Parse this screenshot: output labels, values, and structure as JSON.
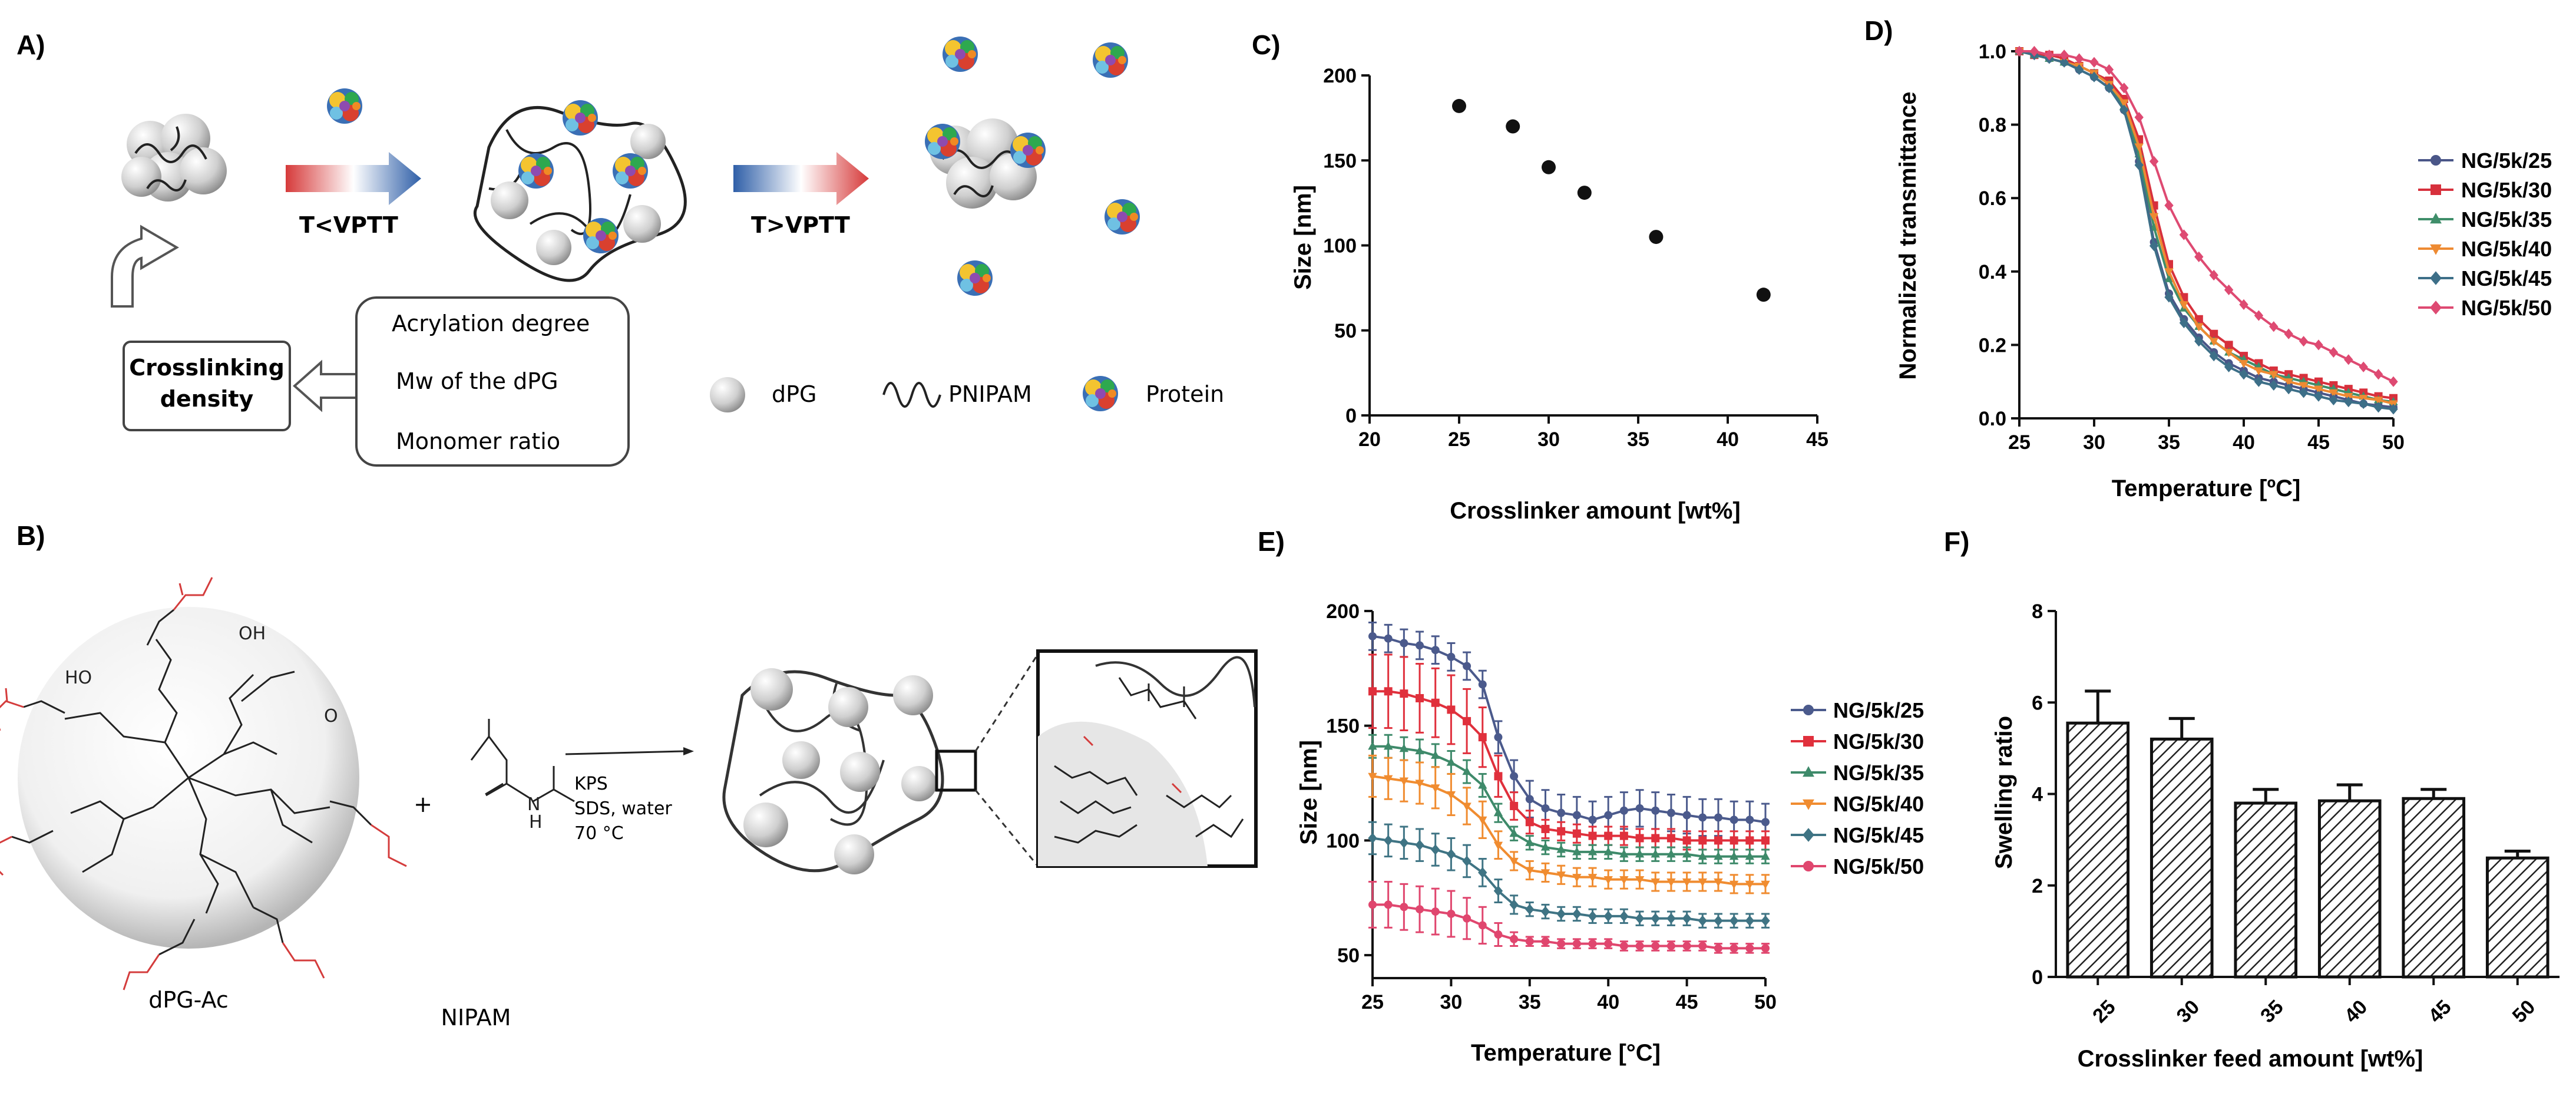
{
  "colors": {
    "s25": "#4b5a8c",
    "s30": "#e0303c",
    "s35": "#3e8a6a",
    "s40": "#f08c30",
    "s45": "#3f7484",
    "s50": "#e0466e",
    "d25": "#4a5688",
    "d30": "#d7303c",
    "d35": "#3f8e6a",
    "d40": "#ee8a32",
    "d45": "#3d6f88",
    "d50": "#de4a72",
    "sphere": "#d9d9d9"
  },
  "schemeA": {
    "panel": "A)",
    "t_lt": "T<VPTT",
    "t_gt": "T>VPTT",
    "crosslinking_line1": "Crosslinking",
    "crosslinking_line2": "density",
    "factors": [
      "Acrylation degree",
      "Mw of the dPG",
      "Monomer ratio"
    ],
    "legend": {
      "dpg": "dPG",
      "pnipam": "PNIPAM",
      "protein": "Protein"
    }
  },
  "schemeB": {
    "panel": "B)",
    "reagent_left": "dPG-Ac",
    "plus": "+",
    "reagent_right": "NIPAM",
    "nh_label": "N",
    "h_label": "H",
    "conditions": [
      "KPS",
      "SDS, water",
      "70 °C"
    ],
    "group_labels": {
      "oh": "OH",
      "ho": "HO",
      "o": "O"
    }
  },
  "chart_data": [
    {
      "panel": "C)",
      "type": "scatter",
      "xlabel": "Crosslinker amount [wt%]",
      "ylabel": "Size  [nm]",
      "xlim": [
        20,
        45
      ],
      "ylim": [
        0,
        200
      ],
      "xticks": [
        "20",
        "25",
        "30",
        "35",
        "40",
        "45"
      ],
      "yticks": [
        "0",
        "50",
        "100",
        "150",
        "200"
      ],
      "x": [
        25,
        28,
        30,
        32,
        36,
        42
      ],
      "y": [
        182,
        170,
        146,
        131,
        105,
        71
      ]
    },
    {
      "panel": "D)",
      "type": "line",
      "xlabel": "Temperature [ºC]",
      "ylabel": "Normalized transmittance",
      "xlim": [
        25,
        50
      ],
      "ylim": [
        0,
        1
      ],
      "xticks": [
        "25",
        "30",
        "35",
        "40",
        "45",
        "50"
      ],
      "yticks": [
        "0.0",
        "0.2",
        "0.4",
        "0.6",
        "0.8",
        "1.0"
      ],
      "x": [
        25,
        26,
        27,
        28,
        29,
        30,
        31,
        32,
        33,
        34,
        35,
        36,
        37,
        38,
        39,
        40,
        41,
        42,
        43,
        44,
        45,
        46,
        47,
        48,
        49,
        50
      ],
      "series": [
        {
          "name": "NG/5k/25",
          "color": "d25",
          "marker": "circle",
          "values": [
            1.0,
            0.99,
            0.98,
            0.97,
            0.95,
            0.93,
            0.9,
            0.84,
            0.7,
            0.48,
            0.34,
            0.27,
            0.22,
            0.18,
            0.15,
            0.13,
            0.11,
            0.1,
            0.09,
            0.08,
            0.07,
            0.06,
            0.05,
            0.04,
            0.035,
            0.03
          ]
        },
        {
          "name": "NG/5k/30",
          "color": "d30",
          "marker": "square",
          "values": [
            1.0,
            0.99,
            0.99,
            0.98,
            0.96,
            0.94,
            0.92,
            0.87,
            0.76,
            0.58,
            0.42,
            0.33,
            0.27,
            0.23,
            0.2,
            0.17,
            0.15,
            0.13,
            0.12,
            0.11,
            0.1,
            0.09,
            0.08,
            0.07,
            0.06,
            0.055
          ]
        },
        {
          "name": "NG/5k/35",
          "color": "d35",
          "marker": "triangle-up",
          "values": [
            1.0,
            0.99,
            0.98,
            0.97,
            0.96,
            0.94,
            0.91,
            0.85,
            0.72,
            0.52,
            0.38,
            0.3,
            0.25,
            0.21,
            0.18,
            0.16,
            0.14,
            0.12,
            0.11,
            0.1,
            0.09,
            0.08,
            0.07,
            0.06,
            0.05,
            0.045
          ]
        },
        {
          "name": "NG/5k/40",
          "color": "d40",
          "marker": "triangle-down",
          "values": [
            1.0,
            0.99,
            0.98,
            0.97,
            0.96,
            0.94,
            0.91,
            0.86,
            0.74,
            0.55,
            0.4,
            0.31,
            0.25,
            0.21,
            0.18,
            0.15,
            0.13,
            0.12,
            0.1,
            0.09,
            0.08,
            0.07,
            0.06,
            0.055,
            0.05,
            0.04
          ]
        },
        {
          "name": "NG/5k/45",
          "color": "d45",
          "marker": "diamond",
          "values": [
            1.0,
            0.99,
            0.98,
            0.97,
            0.95,
            0.93,
            0.9,
            0.84,
            0.69,
            0.47,
            0.33,
            0.26,
            0.21,
            0.17,
            0.14,
            0.12,
            0.1,
            0.09,
            0.08,
            0.07,
            0.06,
            0.05,
            0.045,
            0.04,
            0.03,
            0.025
          ]
        },
        {
          "name": "NG/5k/50",
          "color": "d50",
          "marker": "diamond",
          "values": [
            1.0,
            1.0,
            0.99,
            0.99,
            0.98,
            0.97,
            0.95,
            0.9,
            0.82,
            0.7,
            0.58,
            0.5,
            0.44,
            0.39,
            0.35,
            0.31,
            0.28,
            0.25,
            0.23,
            0.21,
            0.2,
            0.18,
            0.16,
            0.14,
            0.12,
            0.1
          ]
        }
      ]
    },
    {
      "panel": "E)",
      "type": "line",
      "xlabel": "Temperature [°C]",
      "ylabel": "Size  [nm]",
      "xlim": [
        25,
        50
      ],
      "ylim": [
        40,
        200
      ],
      "xticks": [
        "25",
        "30",
        "35",
        "40",
        "45",
        "50"
      ],
      "yticks": [
        "50",
        "100",
        "150",
        "200"
      ],
      "x": [
        25,
        26,
        27,
        28,
        29,
        30,
        31,
        32,
        33,
        34,
        35,
        36,
        37,
        38,
        39,
        40,
        41,
        42,
        43,
        44,
        45,
        46,
        47,
        48,
        49,
        50
      ],
      "series": [
        {
          "name": "NG/5k/25",
          "color": "s25",
          "marker": "circle",
          "values": [
            189,
            188,
            186,
            185,
            183,
            180,
            176,
            168,
            145,
            128,
            118,
            114,
            112,
            111,
            109,
            111,
            113,
            114,
            113,
            112,
            111,
            110,
            110,
            109,
            109,
            108
          ],
          "errors": [
            6,
            6,
            6,
            6,
            6,
            6,
            6,
            6,
            7,
            7,
            8,
            8,
            8,
            8,
            8,
            8,
            8,
            8,
            8,
            8,
            8,
            8,
            8,
            8,
            8,
            8
          ]
        },
        {
          "name": "NG/5k/30",
          "color": "s30",
          "marker": "square",
          "values": [
            165,
            165,
            164,
            162,
            160,
            157,
            152,
            145,
            128,
            115,
            108,
            105,
            104,
            103,
            102,
            102,
            102,
            101,
            101,
            101,
            100,
            100,
            100,
            100,
            100,
            100
          ],
          "errors": [
            16,
            16,
            16,
            15,
            15,
            15,
            14,
            13,
            9,
            6,
            5,
            4,
            4,
            4,
            4,
            4,
            4,
            4,
            4,
            4,
            4,
            4,
            4,
            4,
            4,
            4
          ]
        },
        {
          "name": "NG/5k/35",
          "color": "s35",
          "marker": "triangle-up",
          "values": [
            141,
            141,
            140,
            139,
            137,
            134,
            130,
            124,
            112,
            103,
            99,
            97,
            96,
            95,
            95,
            95,
            94,
            94,
            94,
            94,
            94,
            93,
            93,
            93,
            93,
            93
          ],
          "errors": [
            5,
            5,
            5,
            5,
            5,
            5,
            5,
            5,
            4,
            3,
            3,
            3,
            3,
            3,
            3,
            3,
            3,
            3,
            3,
            3,
            3,
            3,
            3,
            3,
            3,
            3
          ]
        },
        {
          "name": "NG/5k/40",
          "color": "s40",
          "marker": "triangle-down",
          "values": [
            128,
            127,
            126,
            125,
            123,
            120,
            115,
            109,
            98,
            91,
            87,
            86,
            85,
            84,
            84,
            83,
            83,
            83,
            82,
            82,
            82,
            82,
            82,
            81,
            81,
            81
          ],
          "errors": [
            9,
            9,
            9,
            9,
            9,
            9,
            8,
            8,
            6,
            4,
            4,
            4,
            4,
            4,
            4,
            4,
            4,
            4,
            4,
            4,
            4,
            4,
            4,
            4,
            4,
            4
          ]
        },
        {
          "name": "NG/5k/45",
          "color": "s45",
          "marker": "diamond",
          "values": [
            101,
            100,
            99,
            98,
            96,
            94,
            91,
            86,
            78,
            72,
            70,
            69,
            68,
            68,
            67,
            67,
            67,
            66,
            66,
            66,
            66,
            65,
            65,
            65,
            65,
            65
          ],
          "errors": [
            7,
            7,
            7,
            7,
            7,
            7,
            7,
            6,
            5,
            4,
            3,
            3,
            3,
            3,
            3,
            3,
            3,
            3,
            3,
            3,
            3,
            3,
            3,
            3,
            3,
            3
          ]
        },
        {
          "name": "NG/5k/50",
          "color": "s50",
          "marker": "circle",
          "values": [
            72,
            72,
            71,
            70,
            69,
            68,
            66,
            63,
            59,
            57,
            56,
            56,
            55,
            55,
            55,
            55,
            54,
            54,
            54,
            54,
            54,
            54,
            53,
            53,
            53,
            53
          ],
          "errors": [
            10,
            10,
            10,
            10,
            10,
            10,
            9,
            8,
            5,
            3,
            2,
            2,
            2,
            2,
            2,
            2,
            2,
            2,
            2,
            2,
            2,
            2,
            2,
            2,
            2,
            2
          ]
        }
      ]
    },
    {
      "panel": "F)",
      "type": "bar",
      "xlabel": "Crosslinker feed amount [wt%]",
      "ylabel": "Swelling ratio",
      "ylim": [
        0,
        8
      ],
      "yticks": [
        "0",
        "2",
        "4",
        "6",
        "8"
      ],
      "categories": [
        "25",
        "30",
        "35",
        "40",
        "45",
        "50"
      ],
      "values": [
        5.55,
        5.2,
        3.8,
        3.85,
        3.9,
        2.6
      ],
      "errors": [
        0.7,
        0.45,
        0.3,
        0.35,
        0.2,
        0.15
      ]
    }
  ]
}
